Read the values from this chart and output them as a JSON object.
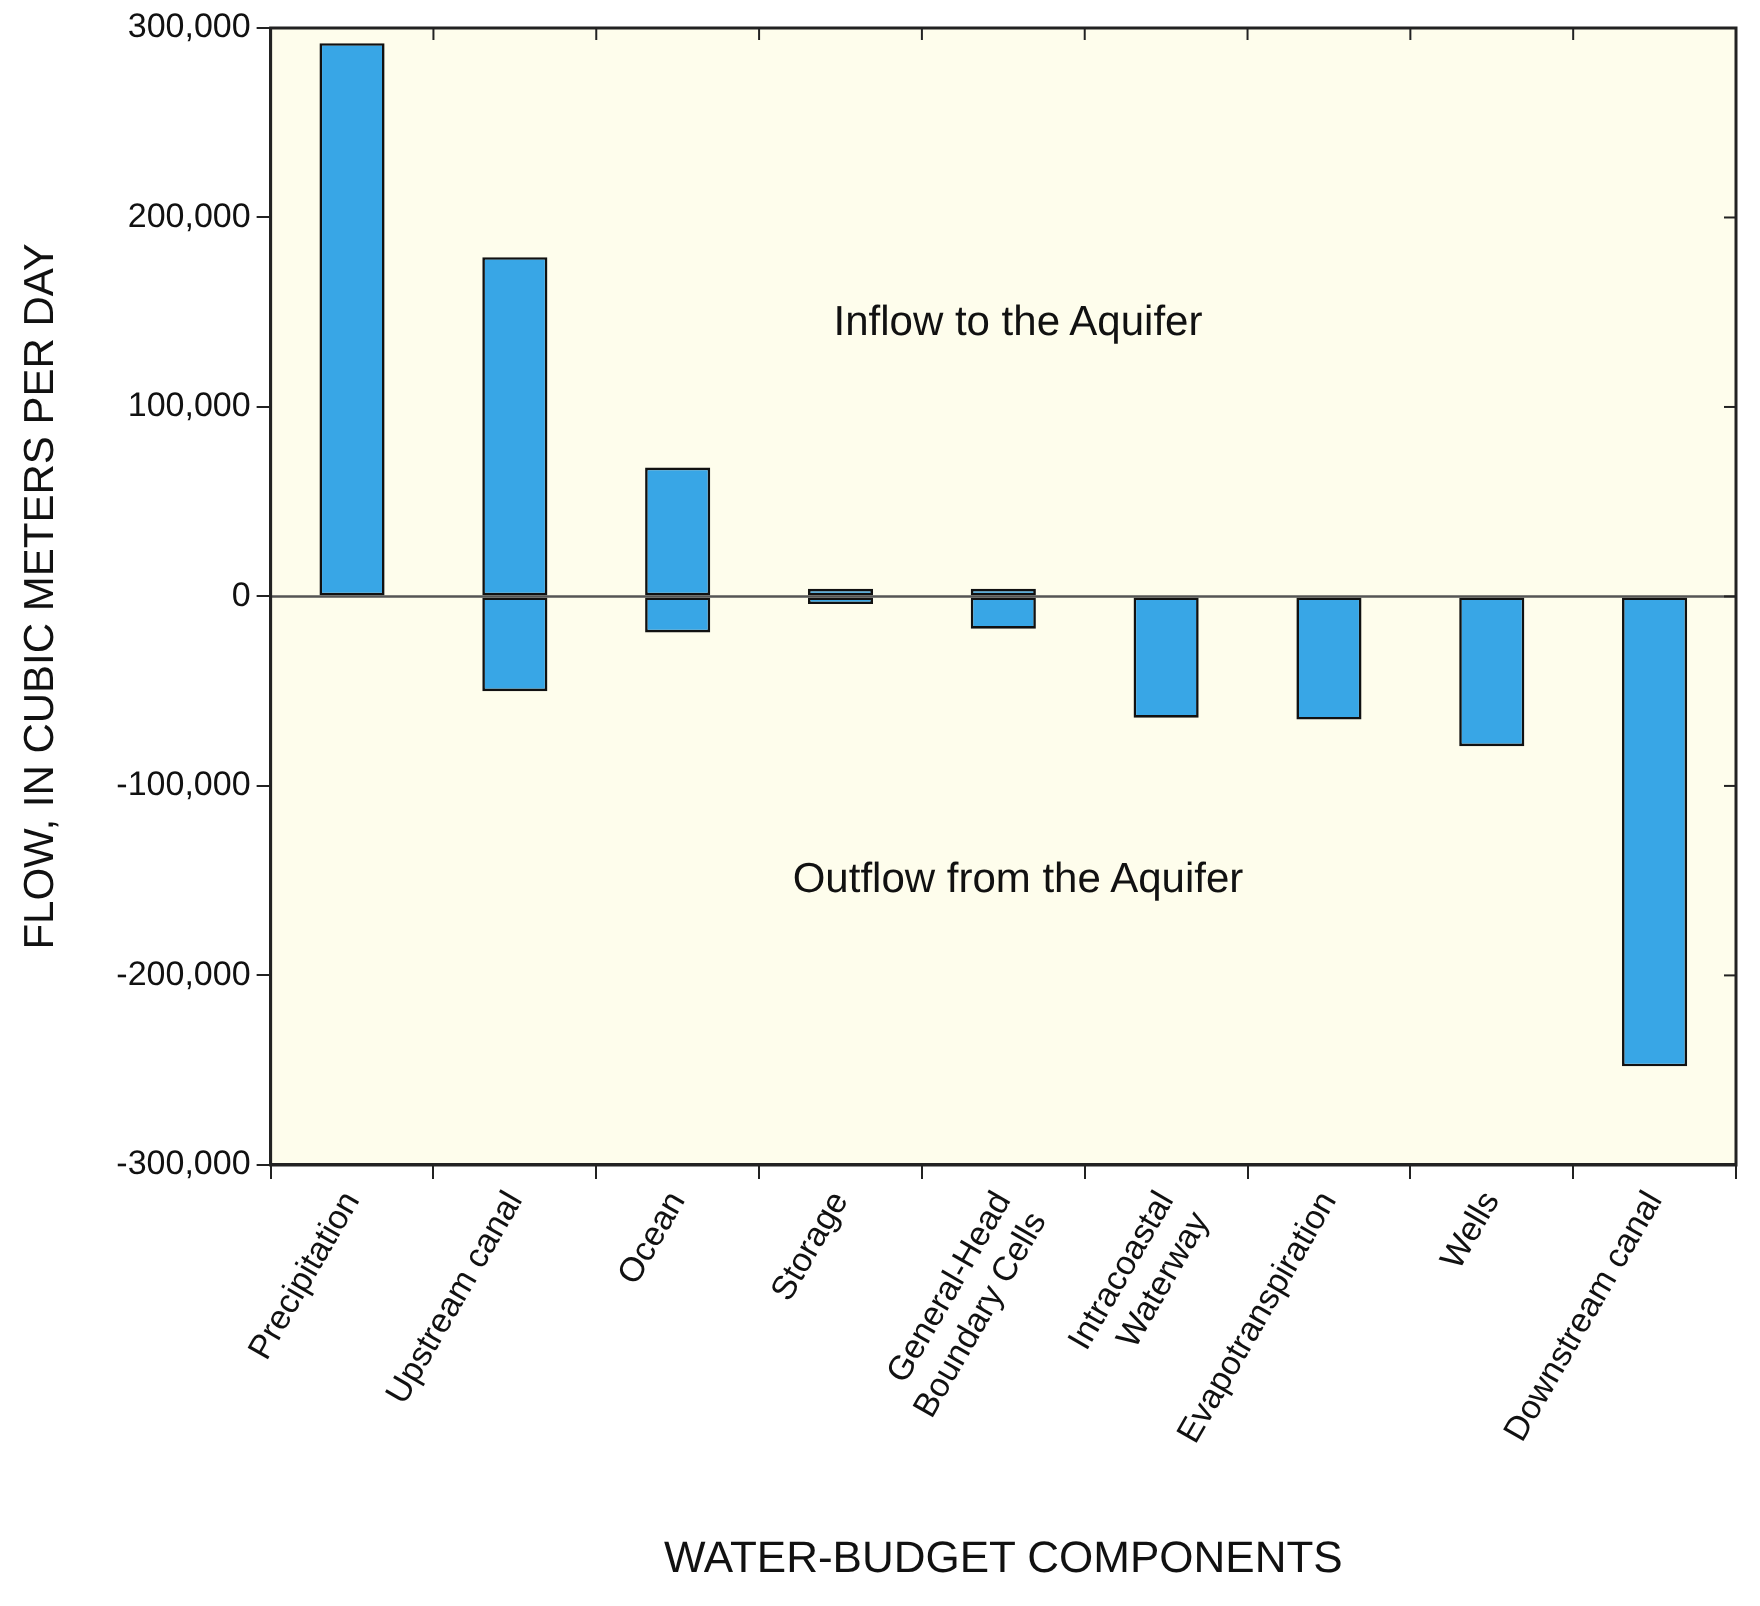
{
  "chart_data": {
    "type": "bar",
    "stacked": true,
    "xlabel": "WATER-BUDGET COMPONENTS",
    "ylabel": "FLOW, IN CUBIC METERS PER DAY",
    "categories": [
      "Precipitation",
      "Upstream canal",
      "Ocean",
      "Storage",
      "General-Head Boundary Cells",
      "Intracoastal Waterway",
      "Evapotranspiration",
      "Wells",
      "Downstream canal"
    ],
    "series": [
      {
        "color": "#38a6e6",
        "values": [
          292000,
          179000,
          68000,
          4000,
          4000,
          null,
          null,
          null,
          null
        ]
      },
      {
        "color": "#38a6e6",
        "values": [
          null,
          -50000,
          -19000,
          -4000,
          -17000,
          -64000,
          -65000,
          -79000,
          -248000
        ]
      }
    ],
    "ylim": [
      -300000,
      300000
    ],
    "yticks": [
      {
        "value": -300000,
        "label": "-300,000"
      },
      {
        "value": -200000,
        "label": "-200,000"
      },
      {
        "value": -100000,
        "label": "-100,000"
      },
      0,
      {
        "value": 100000,
        "label": "100,000"
      },
      {
        "value": 200000,
        "label": "200,000"
      },
      {
        "value": 300000,
        "label": "300,000"
      }
    ],
    "ref_lines": [
      {
        "axis": "y",
        "value": 0,
        "color": "#555555"
      }
    ],
    "annotations": [
      "Inflow to the Aquifer",
      "Outflow from the Aquifer"
    ],
    "grid": false,
    "legend": false
  }
}
